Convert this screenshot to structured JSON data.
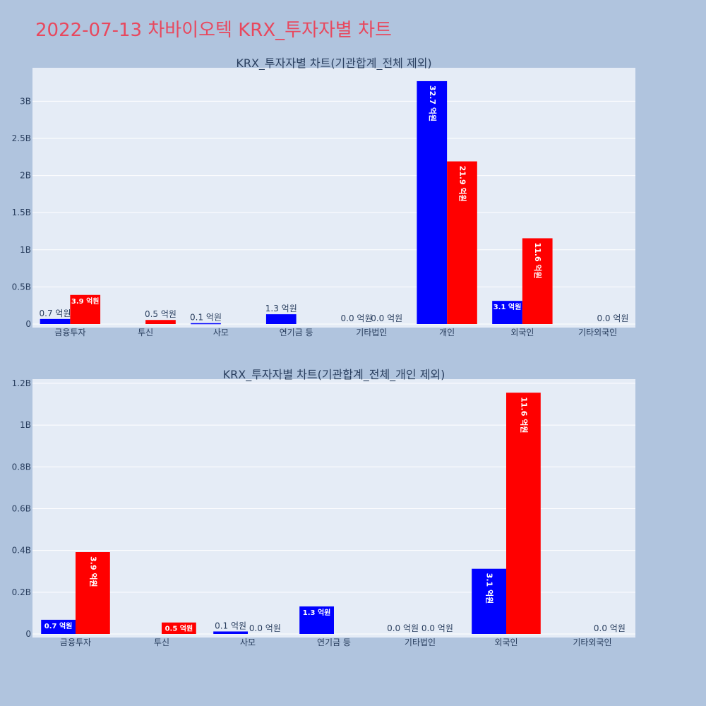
{
  "page_title": "2022-07-13 차바이오텍 KRX_투자자별 차트",
  "colors": {
    "background": "#b0c4de",
    "plot_bg": "#e5ecf6",
    "buy": "#0000ff",
    "sell": "#ff0000",
    "title": "#e8485e",
    "text": "#2a3f5f",
    "grid": "#ffffff"
  },
  "chart_data": [
    {
      "type": "bar",
      "title": "KRX_투자자별 차트(기관합계_전체 제외)",
      "xlabel": "",
      "ylabel": "",
      "categories": [
        "금융투자",
        "투신",
        "사모",
        "연기금 등",
        "기타법인",
        "개인",
        "외국인",
        "기타외국인"
      ],
      "series": [
        {
          "values": [
            0.068,
            0,
            0.012,
            0.132,
            0,
            3.27,
            0.312,
            0
          ],
          "labels": [
            "0.7 억원",
            "",
            "0.1 억원",
            "1.3 억원",
            "0.0 억원",
            "32.7 억원",
            "3.1 억원",
            ""
          ]
        },
        {
          "values": [
            0.392,
            0.055,
            0,
            0,
            0,
            2.19,
            1.155,
            0
          ],
          "labels": [
            "3.9 억원",
            "0.5 억원",
            "",
            "",
            "0.0 억원",
            "21.9 억원",
            "11.6 억원",
            "0.0 억원"
          ]
        }
      ],
      "ylim": [
        0,
        3.45
      ],
      "yticks": [
        0,
        0.5,
        1,
        1.5,
        2,
        2.5,
        3
      ],
      "ytick_labels": [
        "0",
        "0.5B",
        "1B",
        "1.5B",
        "2B",
        "2.5B",
        "3B"
      ],
      "grid": true
    },
    {
      "type": "bar",
      "title": "KRX_투자자별 차트(기관합계_전체_개인 제외)",
      "xlabel": "",
      "ylabel": "",
      "categories": [
        "금융투자",
        "투신",
        "사모",
        "연기금 등",
        "기타법인",
        "외국인",
        "기타외국인"
      ],
      "series": [
        {
          "values": [
            0.068,
            0,
            0.012,
            0.132,
            0,
            0.312,
            0
          ],
          "labels": [
            "0.7 억원",
            "",
            "0.1 억원",
            "1.3 억원",
            "0.0 억원",
            "3.1 억원",
            ""
          ]
        },
        {
          "values": [
            0.392,
            0.055,
            0,
            0,
            0,
            1.155,
            0
          ],
          "labels": [
            "3.9 억원",
            "0.5 억원",
            "0.0 억원",
            "",
            "0.0 억원",
            "11.6 억원",
            "0.0 억원"
          ]
        }
      ],
      "ylim": [
        0,
        1.22
      ],
      "yticks": [
        0,
        0.2,
        0.4,
        0.6,
        0.8,
        1,
        1.2
      ],
      "ytick_labels": [
        "0",
        "0.2B",
        "0.4B",
        "0.6B",
        "0.8B",
        "1B",
        "1.2B"
      ],
      "grid": true
    }
  ]
}
